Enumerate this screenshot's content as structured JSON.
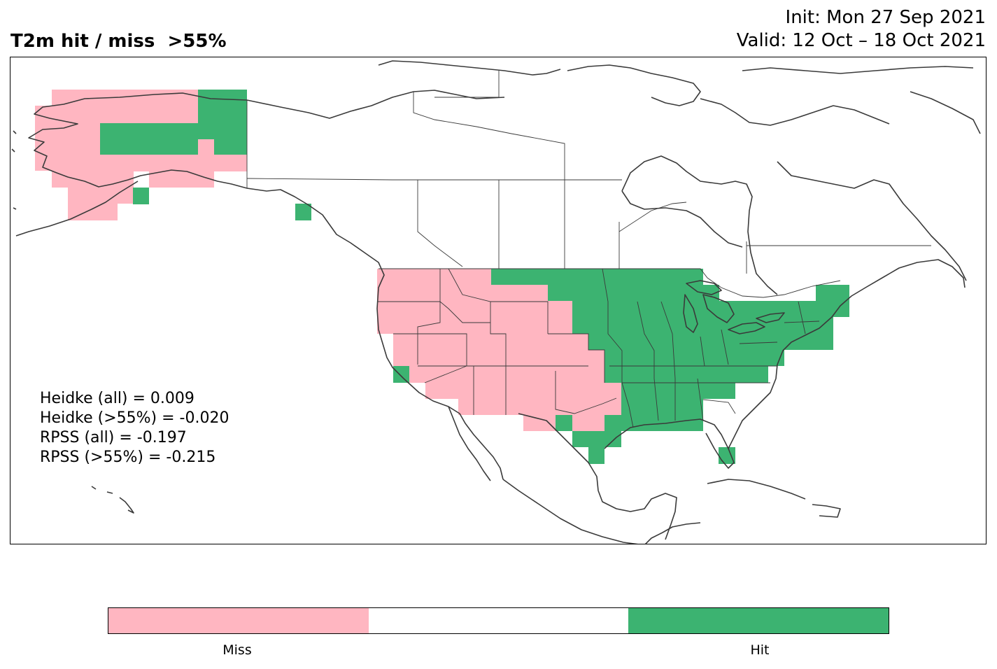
{
  "header": {
    "title": "T2m hit / miss  >55%",
    "init": "Init: Mon 27 Sep 2021",
    "valid": "Valid: 12 Oct – 18 Oct 2021"
  },
  "stats": [
    "Heidke (all) = 0.009",
    "Heidke (>55%) = -0.020",
    "RPSS (all) = -0.197",
    "RPSS (>55%) = -0.215"
  ],
  "legend": {
    "miss_label": "Miss",
    "hit_label": "Hit",
    "colors": {
      "miss": "#ffb6c1",
      "neutral": "#ffffff",
      "hit": "#3cb371"
    }
  },
  "map": {
    "region": "North America",
    "categories": [
      "miss",
      "no-signal",
      "hit"
    ],
    "regions": [
      {
        "area": "Alaska",
        "result": "miss"
      },
      {
        "area": "Yukon / North Alaska",
        "result": "hit"
      },
      {
        "area": "Alaska Panhandle",
        "result": "hit"
      },
      {
        "area": "Western US",
        "result": "miss"
      },
      {
        "area": "Northern Plains",
        "result": "hit"
      },
      {
        "area": "Central & Eastern US",
        "result": "hit"
      },
      {
        "area": "Texas coast",
        "result": "hit"
      },
      {
        "area": "South Florida",
        "result": "hit"
      },
      {
        "area": "Georgia / North Florida",
        "result": "no-signal"
      }
    ]
  }
}
